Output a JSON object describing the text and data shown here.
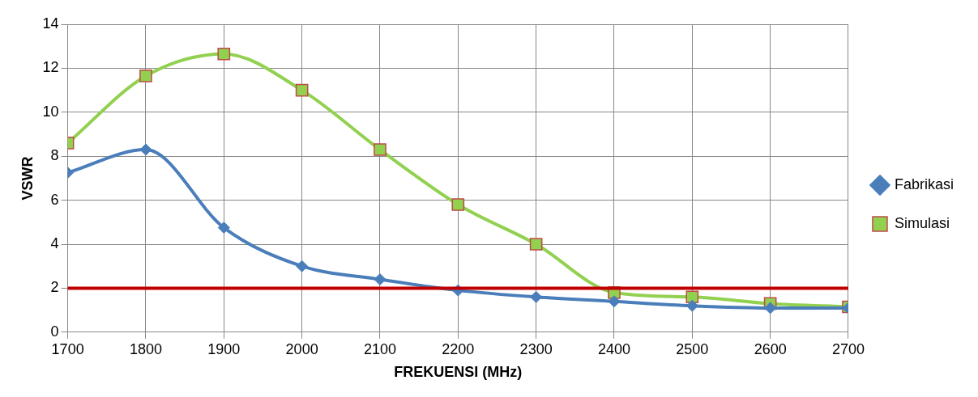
{
  "chart_data": {
    "type": "line",
    "xlabel": "FREKUENSI (MHz)",
    "ylabel": "VSWR",
    "x": [
      1700,
      1800,
      1900,
      2000,
      2100,
      2200,
      2300,
      2400,
      2500,
      2600,
      2700
    ],
    "xlim": [
      1700,
      2700
    ],
    "xticks": [
      1700,
      1800,
      1900,
      2000,
      2100,
      2200,
      2300,
      2400,
      2500,
      2600,
      2700
    ],
    "ylim": [
      0,
      14
    ],
    "yticks": [
      0,
      2,
      4,
      6,
      8,
      10,
      12,
      14
    ],
    "grid": true,
    "legend": "right",
    "series": [
      {
        "name": "Fabrikasi",
        "color": "#4a7ebb",
        "marker": "diamond",
        "values": [
          7.25,
          8.3,
          4.75,
          3.0,
          2.4,
          1.9,
          1.6,
          1.4,
          1.2,
          1.1,
          1.1
        ]
      },
      {
        "name": "Simulasi",
        "color": "#92d050",
        "marker": "square",
        "values": [
          8.6,
          11.65,
          12.65,
          11.0,
          8.3,
          5.8,
          4.0,
          1.8,
          1.6,
          1.3,
          1.15
        ]
      }
    ],
    "ref_lines": [
      {
        "axis": "y",
        "value": 2,
        "color": "#c00000"
      }
    ]
  }
}
